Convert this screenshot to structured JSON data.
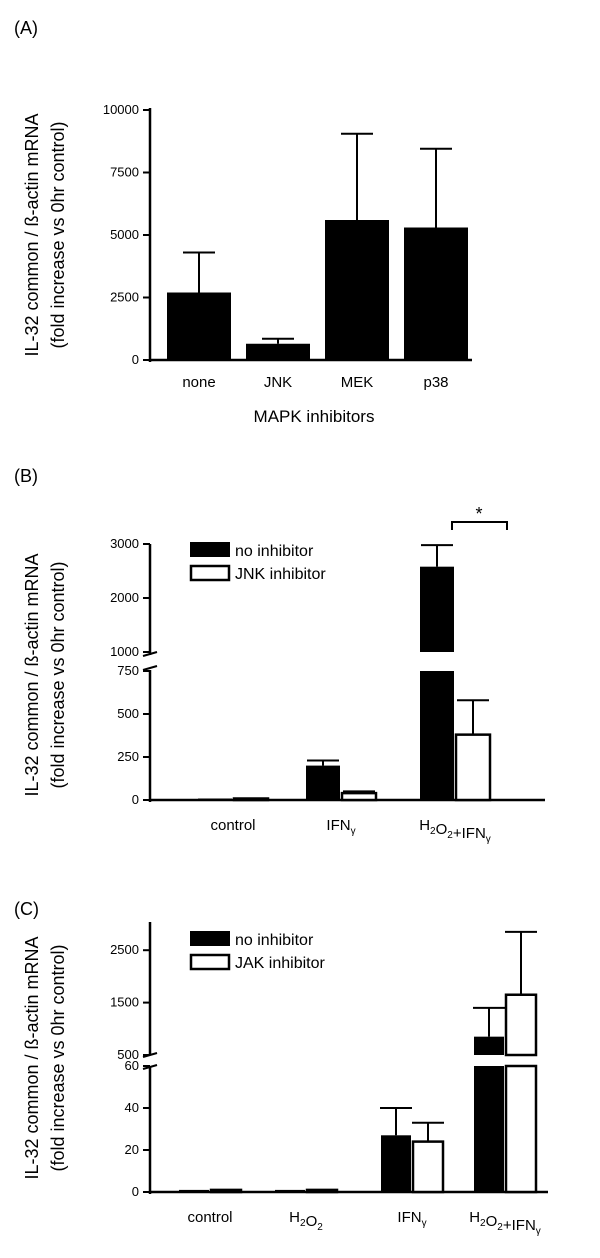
{
  "chart_data": [
    {
      "panel": "(A)",
      "type": "bar",
      "ylabel_line1": "IL-32   common / ß-actin   mRNA",
      "ylabel_line2": "(fold increase vs 0hr control)",
      "xlabel": "MAPK inhibitors",
      "categories": [
        "none",
        "JNK",
        "MEK",
        "p38"
      ],
      "series": [
        {
          "values": [
            2700,
            650,
            5600,
            5300
          ],
          "errors": [
            1600,
            200,
            3450,
            3150
          ]
        }
      ],
      "ylim": [
        0,
        10000
      ],
      "yticks": [
        "0",
        "2500",
        "5000",
        "7500",
        "10000"
      ]
    },
    {
      "panel": "(B)",
      "type": "bar",
      "ylabel_line1": "IL-32   common / ß-actin   mRNA",
      "ylabel_line2": "(fold increase vs 0hr control)",
      "categories": [
        "control",
        "IFN",
        "H2O2+IFN"
      ],
      "series": [
        {
          "name": "no inhibitor",
          "values": [
            0,
            200,
            2580
          ],
          "errors": [
            0,
            30,
            400
          ]
        },
        {
          "name": "JNK inhibitor",
          "values": [
            0,
            40,
            380
          ],
          "errors": [
            0,
            10,
            200
          ]
        }
      ],
      "ylim_lower": [
        0,
        750
      ],
      "ylim_upper": [
        1000,
        3000
      ],
      "yticks_lower": [
        "0",
        "250",
        "500",
        "750"
      ],
      "yticks_upper": [
        "1000",
        "2000",
        "3000"
      ],
      "significance": "*",
      "legend_position": "top-left"
    },
    {
      "panel": "(C)",
      "type": "bar",
      "ylabel_line1": "IL-32   common / ß-actin   mRNA",
      "ylabel_line2": "(fold increase vs 0hr control)",
      "categories": [
        "control",
        "H2O2",
        "IFN",
        "H2O2+IFN"
      ],
      "series": [
        {
          "name": "no inhibitor",
          "values": [
            1,
            1,
            27,
            850
          ],
          "errors": [
            0,
            0,
            13,
            550
          ]
        },
        {
          "name": "JAK inhibitor",
          "values": [
            1,
            1,
            24,
            1650
          ],
          "errors": [
            0,
            0,
            9,
            1200
          ]
        }
      ],
      "ylim_lower": [
        0,
        60
      ],
      "ylim_upper": [
        500,
        3000
      ],
      "yticks_lower": [
        "0",
        "20",
        "40",
        "60"
      ],
      "yticks_upper": [
        "500",
        "1500",
        "2500"
      ],
      "legend_position": "top-left"
    }
  ]
}
